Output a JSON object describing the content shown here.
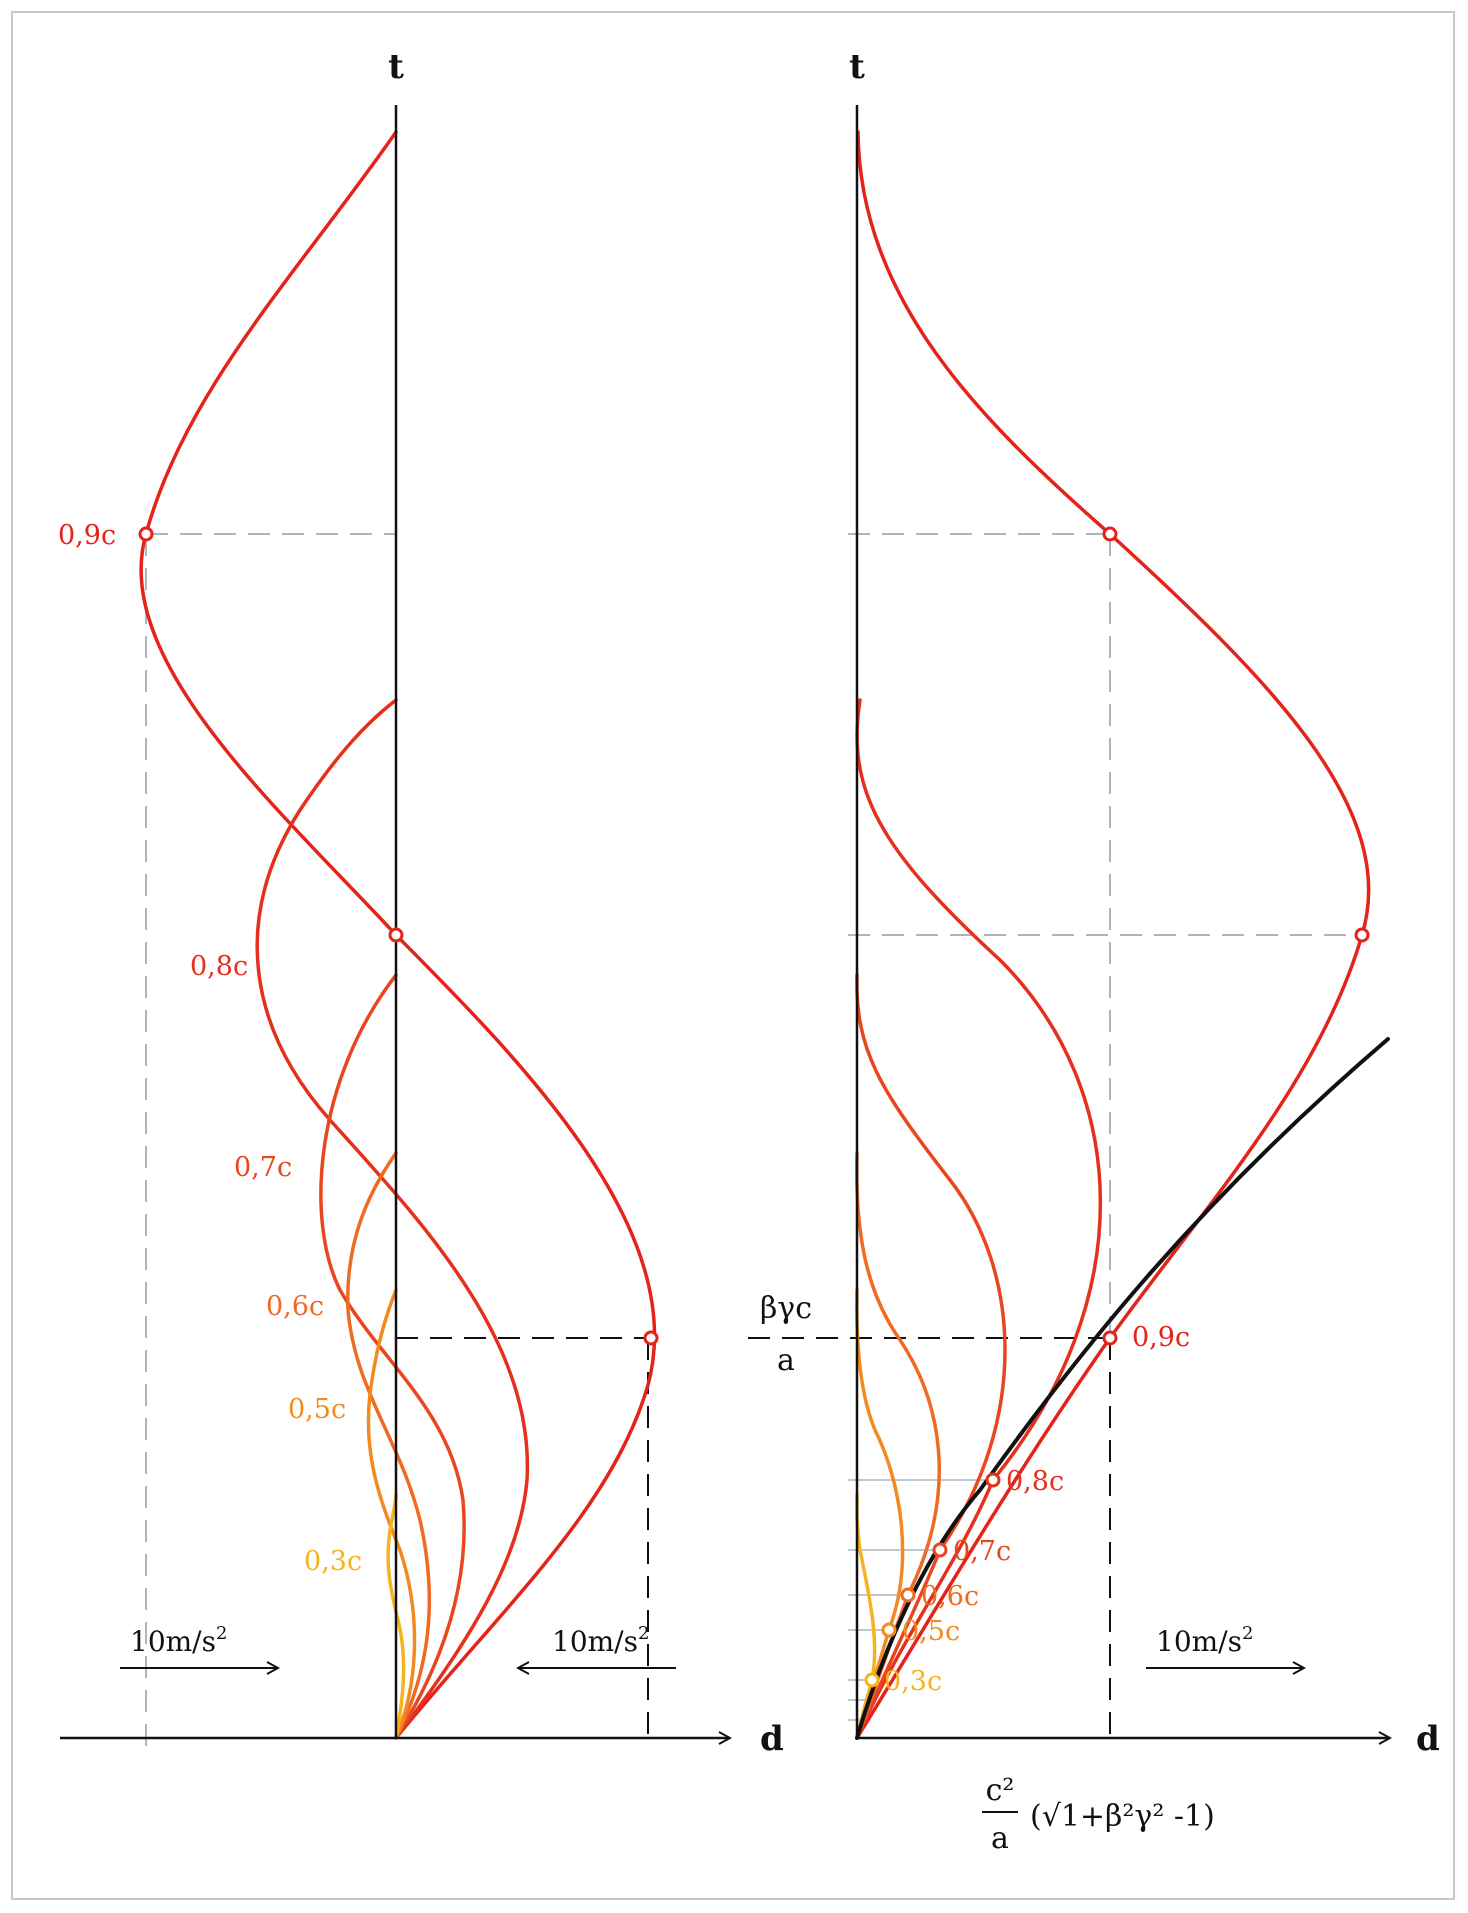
{
  "left_panel": {
    "t_axis_label": "t",
    "d_axis_label": "d",
    "accel_left": {
      "label": "10m/s",
      "exponent": "2"
    },
    "accel_right": {
      "label": "10m/s",
      "exponent": "2"
    },
    "speed_labels": [
      "0,9c",
      "0,8c",
      "0,7c",
      "0,6c",
      "0,5c",
      "0,3c"
    ]
  },
  "right_panel": {
    "t_axis_label": "t",
    "d_axis_label": "d",
    "accel": {
      "label": "10m/s",
      "exponent": "2"
    },
    "t_marker_formula": {
      "numerator": "βγc",
      "denominator": "a"
    },
    "d_marker_formula": {
      "numerator": "c²",
      "denominator": "a",
      "expression": "(√1+β²γ² -1)"
    },
    "speed_labels": [
      "0,9c",
      "0,8c",
      "0,7c",
      "0,6c",
      "0,5c",
      "0,3c"
    ]
  },
  "colors": {
    "c09": "#e4231b",
    "c08": "#e5301d",
    "c07": "#e9461f",
    "c06": "#ef6a22",
    "c05": "#f38a1f",
    "c03": "#f6b41c",
    "guide": "#a9b7bf",
    "axis": "#111111"
  }
}
